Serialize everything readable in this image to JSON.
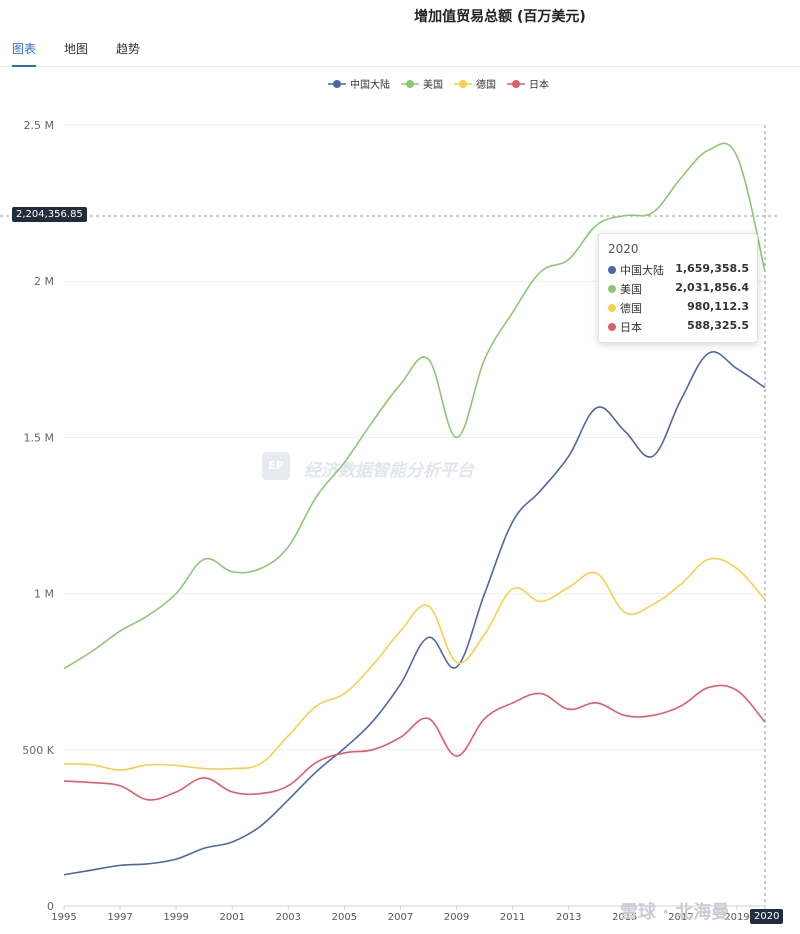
{
  "title": "增加值贸易总额 (百万美元)",
  "tabs": [
    {
      "label": "图表",
      "active": true
    },
    {
      "label": "地图",
      "active": false
    },
    {
      "label": "趋势",
      "active": false
    }
  ],
  "crosshair_label": "2,204,356.85",
  "x_badge": "2020",
  "watermark": {
    "logo": "EP",
    "text": "经济数据智能分析平台"
  },
  "corner_watermark": "雪球 · 北海曼",
  "tooltip": {
    "title": "2020",
    "rows": [
      {
        "name": "中国大陆",
        "value": "1,659,358.5",
        "color": "#4e66a3"
      },
      {
        "name": "美国",
        "value": "2,031,856.4",
        "color": "#8dc774"
      },
      {
        "name": "德国",
        "value": "980,112.3",
        "color": "#f5d04e"
      },
      {
        "name": "日本",
        "value": "588,325.5",
        "color": "#d9606a"
      }
    ]
  },
  "chart_data": {
    "type": "line",
    "x": [
      1995,
      1996,
      1997,
      1998,
      1999,
      2000,
      2001,
      2002,
      2003,
      2004,
      2005,
      2006,
      2007,
      2008,
      2009,
      2010,
      2011,
      2012,
      2013,
      2014,
      2015,
      2016,
      2017,
      2018,
      2019,
      2020
    ],
    "x_tick_labels": [
      "1995",
      "1997",
      "1999",
      "2001",
      "2003",
      "2005",
      "2007",
      "2009",
      "2011",
      "2013",
      "2015",
      "2017",
      "2019",
      "2020"
    ],
    "y_ticks": [
      0,
      500000,
      1000000,
      1500000,
      2000000,
      2500000
    ],
    "y_tick_labels": [
      "0",
      "500 K",
      "1 M",
      "1.5 M",
      "2 M",
      "2.5 M"
    ],
    "ylim": [
      0,
      2500000
    ],
    "grid": true,
    "legend_position": "top-center",
    "series": [
      {
        "name": "中国大陆",
        "color": "#4e66a3",
        "values": [
          100000,
          115000,
          130000,
          135000,
          150000,
          185000,
          205000,
          255000,
          340000,
          430000,
          505000,
          590000,
          710000,
          860000,
          765000,
          1000000,
          1230000,
          1330000,
          1440000,
          1595000,
          1520000,
          1440000,
          1620000,
          1770000,
          1720000,
          1659358.5
        ]
      },
      {
        "name": "美国",
        "color": "#8dc774",
        "values": [
          760000,
          815000,
          880000,
          930000,
          1000000,
          1110000,
          1070000,
          1080000,
          1150000,
          1310000,
          1420000,
          1550000,
          1670000,
          1750000,
          1500000,
          1750000,
          1900000,
          2030000,
          2070000,
          2180000,
          2210000,
          2220000,
          2330000,
          2420000,
          2400000,
          2031856.4
        ]
      },
      {
        "name": "德国",
        "color": "#f5d04e",
        "values": [
          455000,
          452000,
          435000,
          452000,
          450000,
          440000,
          440000,
          455000,
          545000,
          640000,
          680000,
          770000,
          880000,
          960000,
          780000,
          870000,
          1015000,
          975000,
          1020000,
          1065000,
          940000,
          965000,
          1030000,
          1110000,
          1080000,
          980112.3
        ]
      },
      {
        "name": "日本",
        "color": "#d9606a",
        "values": [
          400000,
          395000,
          385000,
          340000,
          365000,
          410000,
          365000,
          360000,
          385000,
          460000,
          490000,
          500000,
          540000,
          600000,
          480000,
          600000,
          650000,
          680000,
          630000,
          650000,
          610000,
          610000,
          640000,
          700000,
          690000,
          588325.5
        ]
      }
    ]
  }
}
